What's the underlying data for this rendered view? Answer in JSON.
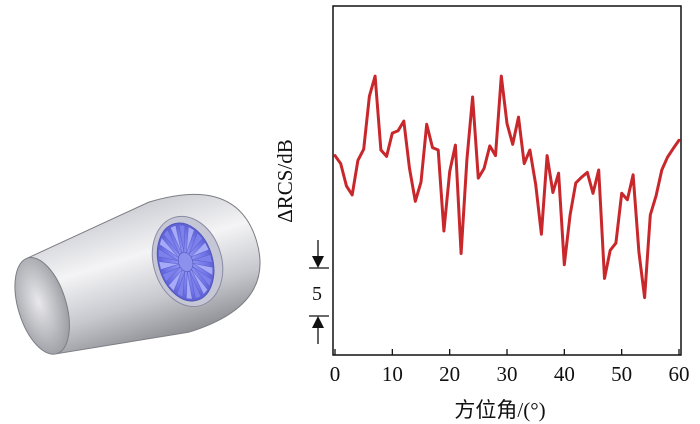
{
  "figure": {
    "colors": {
      "series": "#c8282c",
      "axis": "#111111",
      "shell_light": "#f2f2f4",
      "shell_dark": "#8f9096",
      "fan": "#6f73e6"
    }
  },
  "chart_data": {
    "type": "line",
    "xlabel": "方位角/(°)",
    "ylabel": "ΔRCS/dB",
    "xlim": [
      0,
      60
    ],
    "xticks": [
      0,
      10,
      20,
      30,
      40,
      50,
      60
    ],
    "y_ticks_shown": false,
    "scale_bar": {
      "label": "5",
      "value_db": 5
    },
    "grid": false,
    "legend": "none",
    "ylim": [
      -14,
      24
    ],
    "series": [
      {
        "x": [
          0,
          1,
          2,
          3,
          4,
          5,
          6,
          7,
          8,
          9,
          10,
          11,
          12,
          13,
          14,
          15,
          16,
          17,
          18,
          19,
          20,
          21,
          22,
          23,
          24,
          25,
          26,
          27,
          28,
          29,
          30,
          31,
          32,
          33,
          34,
          35,
          36,
          37,
          38,
          39,
          40,
          41,
          42,
          43,
          44,
          45,
          46,
          47,
          48,
          49,
          50,
          51,
          52,
          53,
          54,
          55,
          56,
          57,
          58,
          59,
          60
        ],
        "values": [
          9.6,
          8.6,
          5.8,
          4.7,
          9.0,
          10.4,
          17.0,
          19.5,
          10.3,
          9.5,
          12.4,
          12.7,
          13.9,
          8.0,
          3.9,
          6.3,
          13.5,
          10.6,
          10.3,
          0.2,
          7.6,
          10.9,
          -2.6,
          9.1,
          16.9,
          6.8,
          8.0,
          10.8,
          9.6,
          19.5,
          13.6,
          11.0,
          14.4,
          8.6,
          10.3,
          6.0,
          -0.2,
          9.6,
          5.0,
          7.4,
          -4.0,
          2.2,
          6.2,
          6.9,
          7.5,
          4.9,
          7.8,
          -5.7,
          -2.2,
          -1.3,
          4.9,
          4.1,
          7.2,
          -2.4,
          -8.1,
          2.2,
          4.6,
          7.8,
          9.4,
          10.5,
          11.5
        ]
      }
    ]
  }
}
